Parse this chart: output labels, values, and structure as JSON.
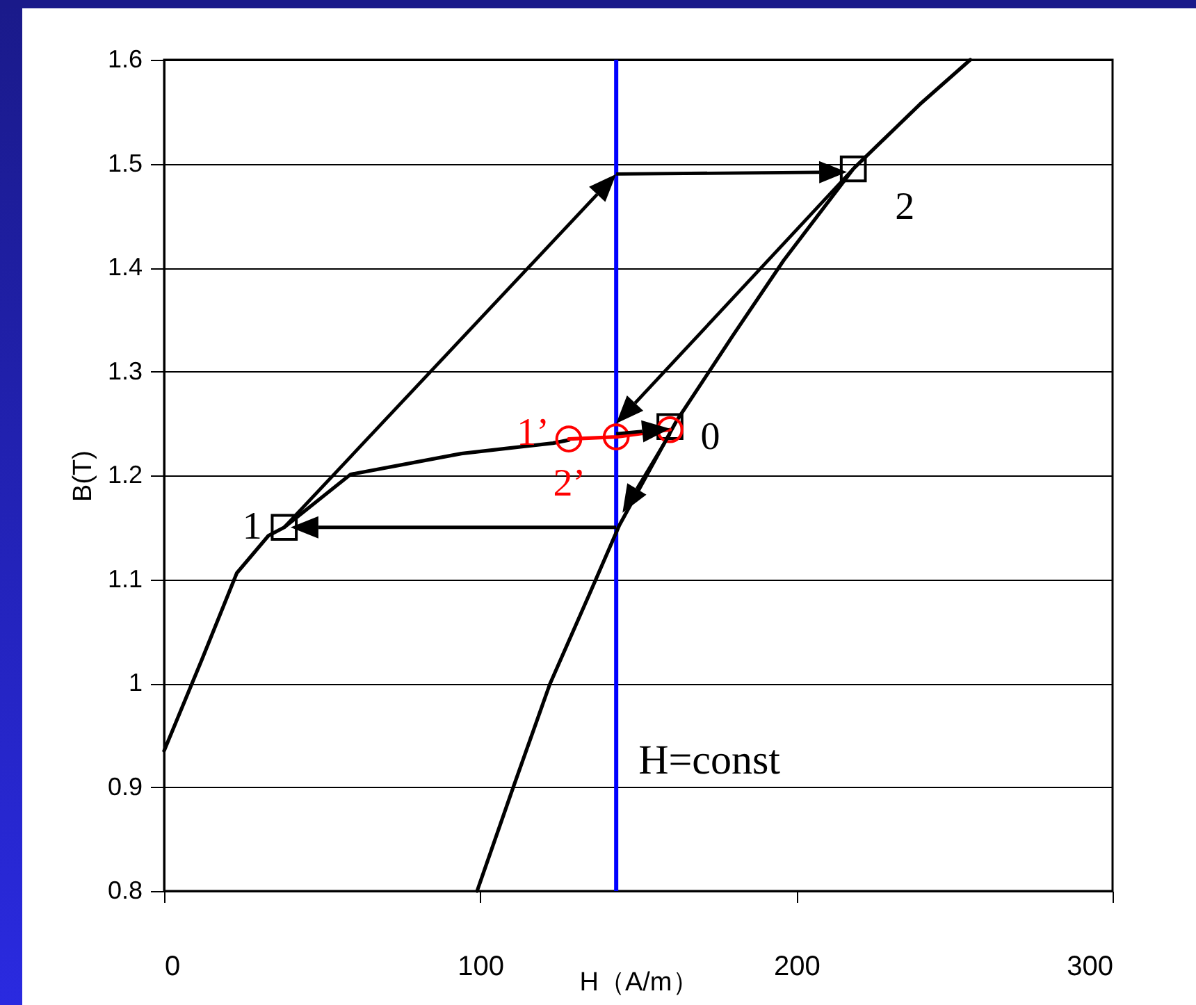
{
  "chart_data": {
    "type": "line",
    "xlabel": "H（A/m）",
    "ylabel": "B(T)",
    "xlim": [
      0,
      300
    ],
    "xticks": [
      0,
      100,
      200,
      300
    ],
    "ylim": [
      0.8,
      1.6
    ],
    "yticks": [
      0.8,
      0.9,
      1,
      1.1,
      1.2,
      1.3,
      1.4,
      1.5,
      1.6
    ],
    "grid": "y",
    "ref_lines": [
      {
        "axis": "x",
        "value": 143,
        "label": "H=const",
        "color": "#0000ff"
      }
    ],
    "annotations": [
      {
        "text": "1",
        "x": 38,
        "y": 1.15
      },
      {
        "text": "0",
        "x": 160,
        "y": 1.247
      },
      {
        "text": "2",
        "x": 218,
        "y": 1.495
      },
      {
        "text": "1’",
        "x": 128,
        "y": 1.235
      },
      {
        "text": "2’",
        "x": 143,
        "y": 1.237
      }
    ],
    "series": [
      {
        "color": "#000000",
        "x": [
          0,
          12,
          23,
          33,
          38,
          59,
          94,
          123,
          128
        ],
        "values": [
          0.935,
          1.023,
          1.106,
          1.142,
          1.15,
          1.201,
          1.221,
          1.231,
          1.234
        ]
      },
      {
        "color": "#000000",
        "x": [
          99,
          110,
          122,
          135,
          144,
          162,
          180,
          196,
          218,
          239,
          255
        ],
        "values": [
          0.8,
          0.896,
          0.999,
          1.089,
          1.152,
          1.252,
          1.335,
          1.407,
          1.495,
          1.557,
          1.6
        ]
      },
      {
        "color": "#ff0000",
        "x": [
          128,
          143,
          160
        ],
        "values": [
          1.235,
          1.237,
          1.244
        ]
      },
      {
        "type": "scatter",
        "color": "#000000",
        "marker": "square",
        "x": [
          38,
          160,
          218
        ],
        "values": [
          1.15,
          1.247,
          1.495
        ]
      },
      {
        "type": "scatter",
        "color": "#ff0000",
        "marker": "circle",
        "x": [
          128,
          143,
          160
        ],
        "values": [
          1.235,
          1.237,
          1.244
        ]
      }
    ]
  }
}
